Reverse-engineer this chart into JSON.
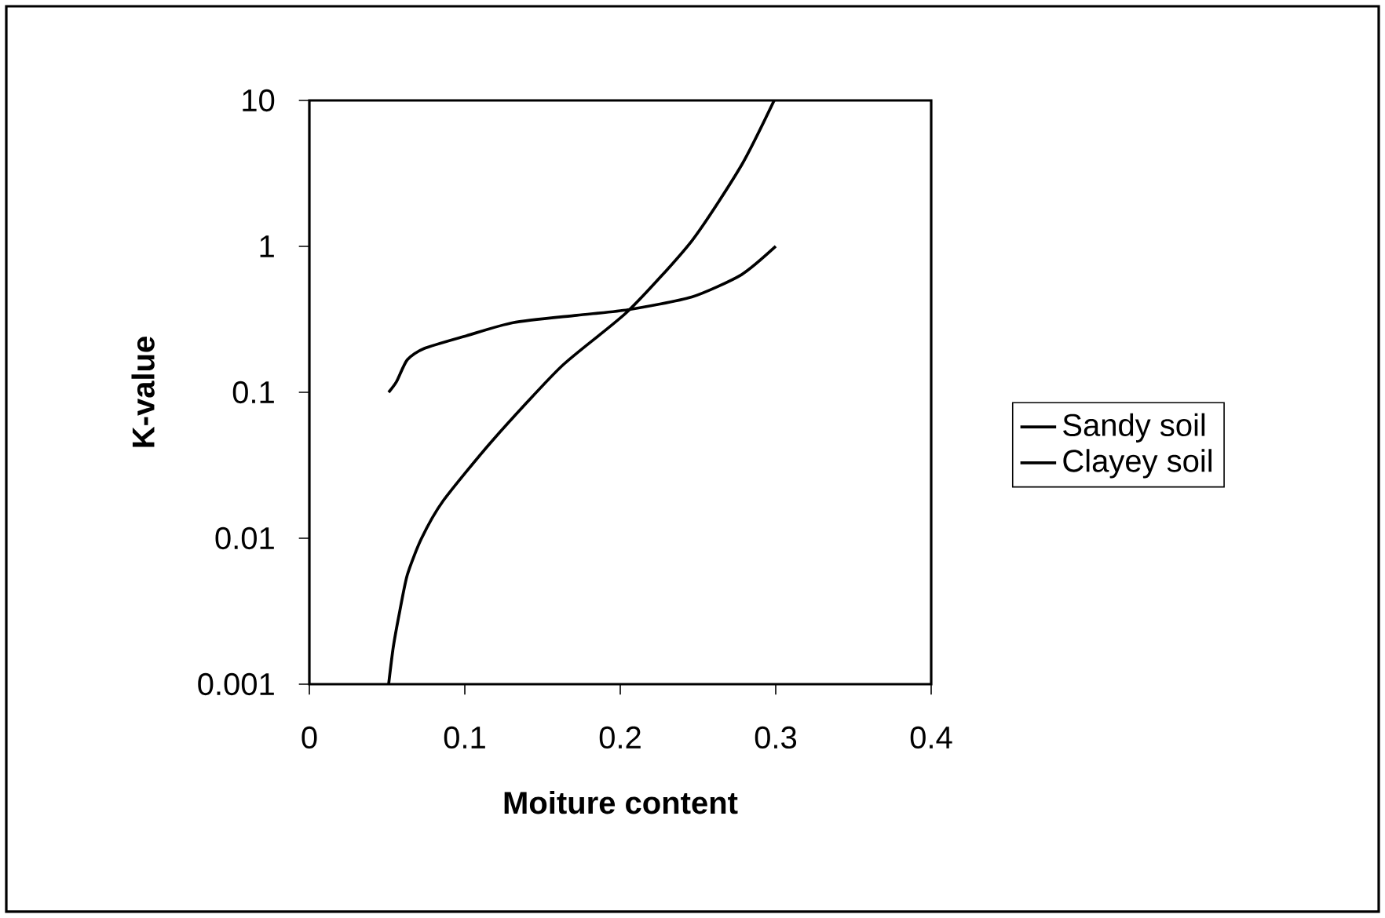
{
  "chart_data": {
    "type": "line",
    "xlabel": "Moiture content",
    "ylabel": "K-value",
    "series": [
      {
        "name": "Sandy soil",
        "color": "#000000",
        "x": [
          0.051,
          0.054,
          0.058,
          0.063,
          0.072,
          0.086,
          0.118,
          0.162,
          0.205,
          0.246,
          0.278,
          0.299
        ],
        "values": [
          0.001,
          0.0018,
          0.0031,
          0.0056,
          0.0099,
          0.018,
          0.047,
          0.15,
          0.36,
          1.09,
          3.6,
          10
        ]
      },
      {
        "name": "Clayey soil",
        "color": "#000000",
        "x": [
          0.051,
          0.056,
          0.063,
          0.074,
          0.101,
          0.131,
          0.172,
          0.205,
          0.246,
          0.278,
          0.3
        ],
        "values": [
          0.1,
          0.118,
          0.167,
          0.2,
          0.244,
          0.3,
          0.337,
          0.368,
          0.45,
          0.64,
          1.0
        ]
      }
    ],
    "xlim": [
      0,
      0.4
    ],
    "xticks": [
      0,
      0.1,
      0.2,
      0.3,
      0.4
    ],
    "ylim": [
      0.001,
      10
    ],
    "yticks": [
      0.001,
      0.01,
      0.1,
      1,
      10
    ],
    "log": "y",
    "legend": "right",
    "line_style": "solid",
    "marker": "none"
  }
}
